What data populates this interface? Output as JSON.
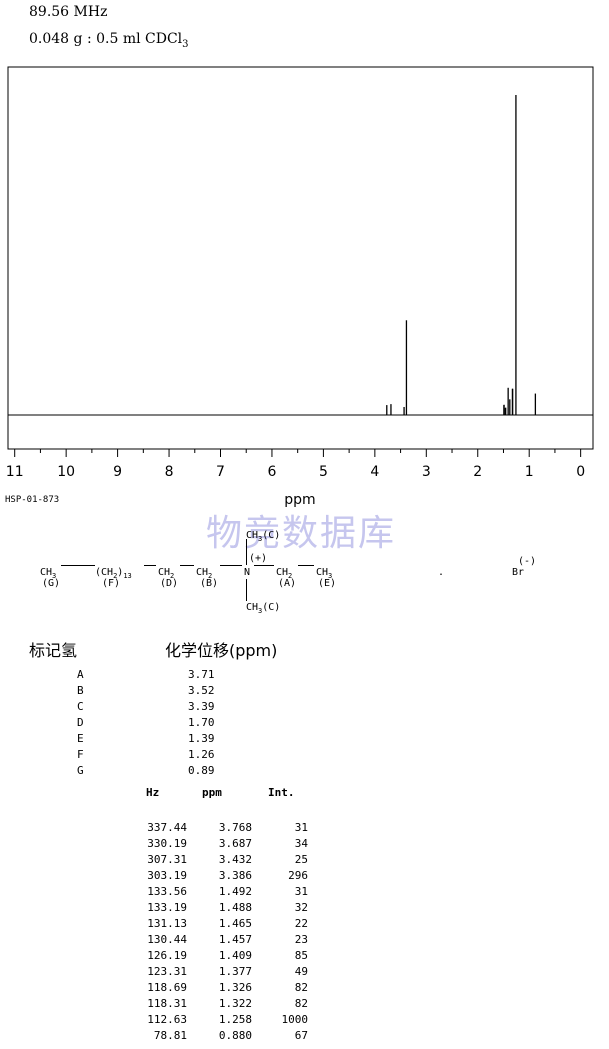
{
  "header": {
    "frequency": "89.56 MHz",
    "sample_main": "0.048 g : 0.5 ml CDCl",
    "sample_sub": "3"
  },
  "chart_data": {
    "type": "line",
    "xlabel": "ppm",
    "x_ticks": [
      "11",
      "10",
      "9",
      "8",
      "7",
      "6",
      "5",
      "4",
      "3",
      "2",
      "1",
      "0"
    ],
    "xlim": [
      11.2,
      -0.2
    ],
    "x_reversed": true,
    "grid": false,
    "peaks": [
      {
        "ppm": 3.768,
        "int": 31
      },
      {
        "ppm": 3.687,
        "int": 34
      },
      {
        "ppm": 3.432,
        "int": 25
      },
      {
        "ppm": 3.386,
        "int": 296
      },
      {
        "ppm": 1.492,
        "int": 31
      },
      {
        "ppm": 1.488,
        "int": 32
      },
      {
        "ppm": 1.465,
        "int": 22
      },
      {
        "ppm": 1.457,
        "int": 23
      },
      {
        "ppm": 1.409,
        "int": 85
      },
      {
        "ppm": 1.377,
        "int": 49
      },
      {
        "ppm": 1.326,
        "int": 82
      },
      {
        "ppm": 1.322,
        "int": 82
      },
      {
        "ppm": 1.258,
        "int": 1000
      },
      {
        "ppm": 0.88,
        "int": 67
      }
    ]
  },
  "spectrum_code": "HSP-01-873",
  "watermark": "物竞数据库",
  "structure": {
    "ch3": "CH",
    "sub3": "3",
    "g": "(G)",
    "ch2_open": "(CH",
    "sub2": "2",
    "close13": ")",
    "n13": "13",
    "f": "(F)",
    "ch2": "CH",
    "d": "(D)",
    "b": "(B)",
    "n": "N",
    "charge": "(+)",
    "a": "(A)",
    "e": "(E)",
    "c_top": "(C)",
    "c_bottom": "(C)",
    "dot": ".",
    "br": "Br",
    "br_charge": "(-)"
  },
  "assignments": {
    "col_label": "标记氢",
    "col_shift": "化学位移(ppm)",
    "rows": [
      {
        "label": "A",
        "ppm": "3.71"
      },
      {
        "label": "B",
        "ppm": "3.52"
      },
      {
        "label": "C",
        "ppm": "3.39"
      },
      {
        "label": "D",
        "ppm": "1.70"
      },
      {
        "label": "E",
        "ppm": "1.39"
      },
      {
        "label": "F",
        "ppm": "1.26"
      },
      {
        "label": "G",
        "ppm": "0.89"
      }
    ]
  },
  "peak_table": {
    "headers": [
      "Hz",
      "ppm",
      "Int."
    ],
    "rows": [
      [
        "337.44",
        "3.768",
        "31"
      ],
      [
        "330.19",
        "3.687",
        "34"
      ],
      [
        "307.31",
        "3.432",
        "25"
      ],
      [
        "303.19",
        "3.386",
        "296"
      ],
      [
        "133.56",
        "1.492",
        "31"
      ],
      [
        "133.19",
        "1.488",
        "32"
      ],
      [
        "131.13",
        "1.465",
        "22"
      ],
      [
        "130.44",
        "1.457",
        "23"
      ],
      [
        "126.19",
        "1.409",
        "85"
      ],
      [
        "123.31",
        "1.377",
        "49"
      ],
      [
        "118.69",
        "1.326",
        "82"
      ],
      [
        "118.31",
        "1.322",
        "82"
      ],
      [
        "112.63",
        "1.258",
        "1000"
      ],
      [
        "78.81",
        "0.880",
        "67"
      ]
    ]
  }
}
